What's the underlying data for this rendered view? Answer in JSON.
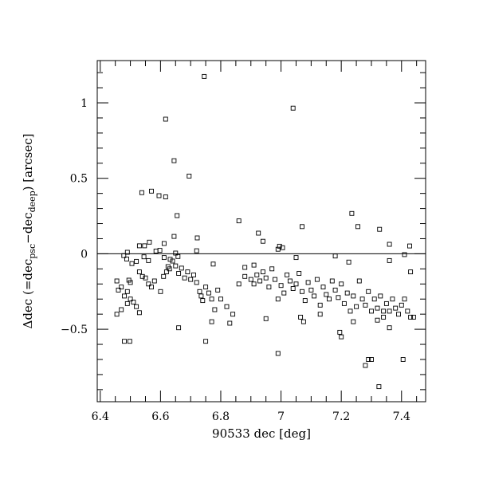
{
  "chart_data": {
    "type": "scatter",
    "xlabel": "90533 dec [deg]",
    "ylabel": {
      "prefix": "Δdec (=dec",
      "sub1": "psc",
      "mid": "−dec",
      "sub2": "deep",
      "suffix": ") [arcsec]"
    },
    "xlim": [
      6.39,
      7.48
    ],
    "ylim": [
      -0.98,
      1.28
    ],
    "x_ticks": [
      {
        "value": 6.4,
        "label": "6.4"
      },
      {
        "value": 6.6,
        "label": "6.6"
      },
      {
        "value": 6.8,
        "label": "6.8"
      },
      {
        "value": 7.0,
        "label": "7"
      },
      {
        "value": 7.2,
        "label": "7.2"
      },
      {
        "value": 7.4,
        "label": "7.4"
      }
    ],
    "y_ticks": [
      {
        "value": -0.5,
        "label": "−0.5"
      },
      {
        "value": 0,
        "label": "0"
      },
      {
        "value": 0.5,
        "label": "0.5"
      },
      {
        "value": 1,
        "label": "1"
      }
    ],
    "reference_line": 0,
    "marker": "open-square",
    "points": [
      [
        6.745,
        1.175
      ],
      [
        7.04,
        0.965
      ],
      [
        6.617,
        0.892
      ],
      [
        6.645,
        0.617
      ],
      [
        6.695,
        0.515
      ],
      [
        6.57,
        0.415
      ],
      [
        6.538,
        0.405
      ],
      [
        6.595,
        0.385
      ],
      [
        6.617,
        0.377
      ],
      [
        7.235,
        0.267
      ],
      [
        6.655,
        0.253
      ],
      [
        6.86,
        0.218
      ],
      [
        7.07,
        0.18
      ],
      [
        7.255,
        0.18
      ],
      [
        7.327,
        0.162
      ],
      [
        6.925,
        0.137
      ],
      [
        6.645,
        0.115
      ],
      [
        6.94,
        0.083
      ],
      [
        6.722,
        0.105
      ],
      [
        7.36,
        0.063
      ],
      [
        6.995,
        0.05
      ],
      [
        7.427,
        0.052
      ],
      [
        6.53,
        0.053
      ],
      [
        6.547,
        0.053
      ],
      [
        6.563,
        0.077
      ],
      [
        6.612,
        0.068
      ],
      [
        6.99,
        0.03
      ],
      [
        7.005,
        0.04
      ],
      [
        6.585,
        0.018
      ],
      [
        6.598,
        0.023
      ],
      [
        6.72,
        0.02
      ],
      [
        6.65,
        0.005
      ],
      [
        6.49,
        0.01
      ],
      [
        6.478,
        -0.012
      ],
      [
        6.488,
        -0.035
      ],
      [
        6.545,
        -0.02
      ],
      [
        6.56,
        -0.045
      ],
      [
        6.612,
        -0.025
      ],
      [
        6.632,
        -0.037
      ],
      [
        6.64,
        -0.048
      ],
      [
        6.658,
        -0.018
      ],
      [
        6.52,
        -0.05
      ],
      [
        6.505,
        -0.065
      ],
      [
        6.625,
        -0.085
      ],
      [
        6.67,
        -0.095
      ],
      [
        6.775,
        -0.068
      ],
      [
        6.88,
        -0.09
      ],
      [
        6.91,
        -0.075
      ],
      [
        7.05,
        -0.025
      ],
      [
        7.18,
        -0.015
      ],
      [
        7.225,
        -0.055
      ],
      [
        7.36,
        -0.045
      ],
      [
        7.41,
        -0.005
      ],
      [
        6.455,
        -0.18
      ],
      [
        6.46,
        -0.24
      ],
      [
        6.47,
        -0.22
      ],
      [
        6.48,
        -0.28
      ],
      [
        6.49,
        -0.25
      ],
      [
        6.495,
        -0.175
      ],
      [
        6.5,
        -0.19
      ],
      [
        6.51,
        -0.32
      ],
      [
        6.52,
        -0.35
      ],
      [
        6.5,
        -0.3
      ],
      [
        6.49,
        -0.33
      ],
      [
        6.53,
        -0.12
      ],
      [
        6.54,
        -0.15
      ],
      [
        6.55,
        -0.16
      ],
      [
        6.56,
        -0.2
      ],
      [
        6.57,
        -0.22
      ],
      [
        6.58,
        -0.18
      ],
      [
        6.6,
        -0.25
      ],
      [
        6.61,
        -0.15
      ],
      [
        6.62,
        -0.12
      ],
      [
        6.63,
        -0.1
      ],
      [
        6.65,
        -0.08
      ],
      [
        6.66,
        -0.13
      ],
      [
        6.68,
        -0.16
      ],
      [
        6.69,
        -0.12
      ],
      [
        6.7,
        -0.17
      ],
      [
        6.71,
        -0.14
      ],
      [
        6.72,
        -0.19
      ],
      [
        6.73,
        -0.25
      ],
      [
        6.735,
        -0.28
      ],
      [
        6.74,
        -0.31
      ],
      [
        6.75,
        -0.22
      ],
      [
        6.76,
        -0.26
      ],
      [
        6.77,
        -0.3
      ],
      [
        6.78,
        -0.37
      ],
      [
        6.79,
        -0.24
      ],
      [
        6.8,
        -0.3
      ],
      [
        6.82,
        -0.35
      ],
      [
        6.84,
        -0.4
      ],
      [
        6.86,
        -0.2
      ],
      [
        6.88,
        -0.15
      ],
      [
        6.9,
        -0.17
      ],
      [
        6.91,
        -0.2
      ],
      [
        6.92,
        -0.14
      ],
      [
        6.93,
        -0.18
      ],
      [
        6.94,
        -0.12
      ],
      [
        6.95,
        -0.16
      ],
      [
        6.96,
        -0.22
      ],
      [
        6.97,
        -0.1
      ],
      [
        6.98,
        -0.17
      ],
      [
        6.99,
        -0.3
      ],
      [
        7.0,
        -0.21
      ],
      [
        7.01,
        -0.26
      ],
      [
        7.02,
        -0.14
      ],
      [
        7.03,
        -0.18
      ],
      [
        7.04,
        -0.23
      ],
      [
        7.05,
        -0.2
      ],
      [
        7.06,
        -0.13
      ],
      [
        7.07,
        -0.25
      ],
      [
        7.08,
        -0.31
      ],
      [
        7.09,
        -0.19
      ],
      [
        7.1,
        -0.24
      ],
      [
        7.11,
        -0.28
      ],
      [
        7.12,
        -0.17
      ],
      [
        7.13,
        -0.34
      ],
      [
        7.14,
        -0.22
      ],
      [
        7.15,
        -0.27
      ],
      [
        7.16,
        -0.3
      ],
      [
        7.17,
        -0.18
      ],
      [
        7.18,
        -0.24
      ],
      [
        7.19,
        -0.29
      ],
      [
        7.2,
        -0.2
      ],
      [
        7.21,
        -0.33
      ],
      [
        7.22,
        -0.26
      ],
      [
        7.23,
        -0.38
      ],
      [
        7.24,
        -0.28
      ],
      [
        7.25,
        -0.35
      ],
      [
        7.26,
        -0.18
      ],
      [
        7.27,
        -0.3
      ],
      [
        7.28,
        -0.34
      ],
      [
        7.29,
        -0.25
      ],
      [
        7.3,
        -0.38
      ],
      [
        7.31,
        -0.3
      ],
      [
        7.32,
        -0.36
      ],
      [
        7.33,
        -0.28
      ],
      [
        7.34,
        -0.42
      ],
      [
        7.35,
        -0.33
      ],
      [
        7.36,
        -0.38
      ],
      [
        7.37,
        -0.3
      ],
      [
        7.38,
        -0.36
      ],
      [
        7.39,
        -0.4
      ],
      [
        7.4,
        -0.34
      ],
      [
        7.41,
        -0.3
      ],
      [
        7.42,
        -0.38
      ],
      [
        7.43,
        -0.12
      ],
      [
        7.44,
        -0.42
      ],
      [
        6.455,
        -0.4
      ],
      [
        6.47,
        -0.37
      ],
      [
        6.48,
        -0.58
      ],
      [
        6.498,
        -0.58
      ],
      [
        6.53,
        -0.39
      ],
      [
        6.66,
        -0.49
      ],
      [
        6.75,
        -0.58
      ],
      [
        6.77,
        -0.45
      ],
      [
        6.83,
        -0.46
      ],
      [
        6.95,
        -0.43
      ],
      [
        6.99,
        -0.66
      ],
      [
        7.065,
        -0.42
      ],
      [
        7.075,
        -0.45
      ],
      [
        7.13,
        -0.4
      ],
      [
        7.195,
        -0.52
      ],
      [
        7.2,
        -0.55
      ],
      [
        7.24,
        -0.45
      ],
      [
        7.28,
        -0.74
      ],
      [
        7.29,
        -0.7
      ],
      [
        7.3,
        -0.7
      ],
      [
        7.32,
        -0.44
      ],
      [
        7.325,
        -0.88
      ],
      [
        7.34,
        -0.38
      ],
      [
        7.36,
        -0.49
      ],
      [
        7.405,
        -0.7
      ],
      [
        7.43,
        -0.42
      ]
    ]
  }
}
